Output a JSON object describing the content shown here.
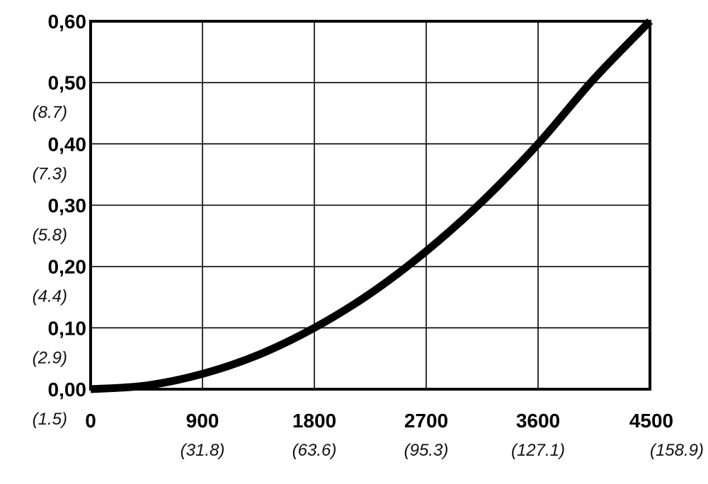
{
  "chart_data": {
    "type": "line",
    "title": "",
    "xlabel": "",
    "ylabel": "",
    "xlim": [
      0,
      4500
    ],
    "ylim": [
      0,
      0.6
    ],
    "grid": true,
    "x_ticks": [
      {
        "value": 0,
        "label": "0",
        "alt_label": ""
      },
      {
        "value": 900,
        "label": "900",
        "alt_label": "(31.8)"
      },
      {
        "value": 1800,
        "label": "1800",
        "alt_label": "(63.6)"
      },
      {
        "value": 2700,
        "label": "2700",
        "alt_label": "(95.3)"
      },
      {
        "value": 3600,
        "label": "3600",
        "alt_label": "(127.1)"
      },
      {
        "value": 4500,
        "label": "4500",
        "alt_label": "(158.9)"
      }
    ],
    "y_ticks": [
      {
        "value": 0.0,
        "label": "0,00",
        "alt_label": "(1.5)"
      },
      {
        "value": 0.1,
        "label": "0,10",
        "alt_label": "(2.9)"
      },
      {
        "value": 0.2,
        "label": "0,20",
        "alt_label": "(4.4)"
      },
      {
        "value": 0.3,
        "label": "0,30",
        "alt_label": "(5.8)"
      },
      {
        "value": 0.4,
        "label": "0,40",
        "alt_label": "(7.3)"
      },
      {
        "value": 0.5,
        "label": "0,50",
        "alt_label": "(8.7)"
      },
      {
        "value": 0.6,
        "label": "0,60",
        "alt_label": ""
      }
    ],
    "series": [
      {
        "x": [
          0,
          450,
          900,
          1350,
          1800,
          2250,
          2700,
          3150,
          3600,
          4050,
          4500
        ],
        "y": [
          0.0,
          0.006,
          0.025,
          0.056,
          0.1,
          0.156,
          0.225,
          0.306,
          0.4,
          0.506,
          0.6
        ],
        "color": "#000000"
      }
    ]
  }
}
